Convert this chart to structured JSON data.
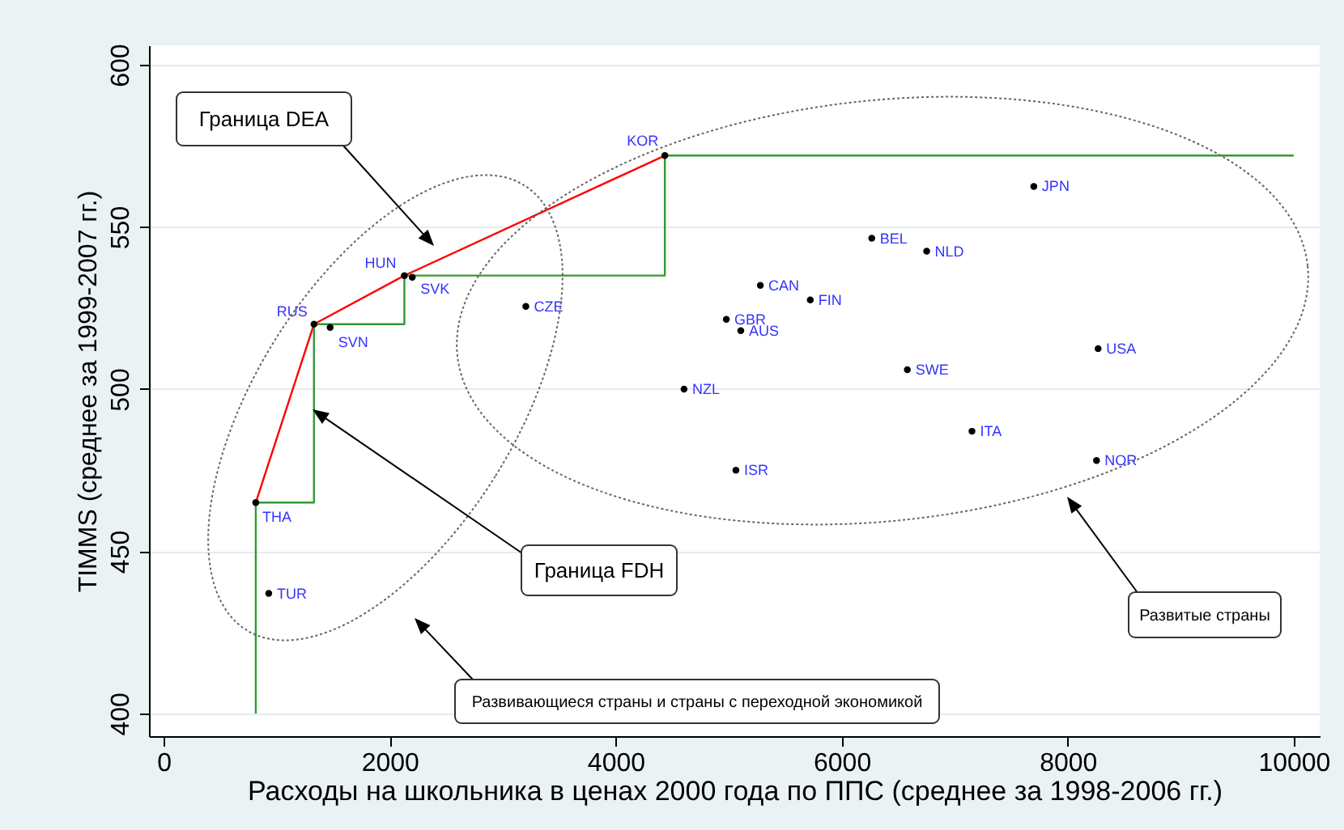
{
  "chart_data": {
    "type": "scatter",
    "xlabel": "Расходы на школьника в ценах 2000 года по ППС (среднее за 1998-2006 гг.)",
    "ylabel": "TIMMS (среднее за 1999-2007 гг.)",
    "xlim": [
      -130,
      10230
    ],
    "ylim": [
      393,
      606
    ],
    "xticks": [
      0,
      2000,
      4000,
      6000,
      8000,
      10000
    ],
    "yticks": [
      400,
      450,
      500,
      550,
      600
    ],
    "grid": "y",
    "annotations": [
      "Граница DEA",
      "Граница FDH",
      "Развитые страны",
      "Развивающиеся страны и страны с переходной экономикой"
    ],
    "series": [
      {
        "type": "line",
        "color": "#ff0000",
        "x": [
          815,
          1330,
          2130,
          4435
        ],
        "values": [
          465,
          520,
          535,
          572
        ]
      },
      {
        "type": "line",
        "color": "#339933",
        "x": [
          815,
          815,
          1330,
          1330,
          2130,
          2130,
          4435,
          4435,
          10000
        ],
        "values": [
          400,
          465,
          465,
          520,
          520,
          535,
          535,
          572,
          572
        ]
      },
      {
        "color": "#000000",
        "marker": "circle",
        "x": [
          815,
          930,
          1330,
          1473,
          2130,
          2200,
          3205,
          4435,
          4605,
          5064,
          4979,
          5107,
          5280,
          5722,
          6266,
          6752,
          6581,
          7153,
          7700,
          8269,
          8255
        ],
        "values": [
          465,
          437,
          520,
          519,
          535,
          534.5,
          525.5,
          572,
          500,
          475,
          521.5,
          518,
          532,
          527.5,
          546.5,
          542.5,
          506,
          487,
          562.5,
          512.5,
          478
        ],
        "value_labels": [
          "THA",
          "TUR",
          "RUS",
          "SVN",
          "HUN",
          "SVK",
          "CZE",
          "KOR",
          "NZL",
          "ISR",
          "GBR",
          "AUS",
          "CAN",
          "FIN",
          "BEL",
          "NLD",
          "SWE",
          "ITA",
          "JPN",
          "USA",
          "NOR"
        ]
      }
    ]
  }
}
